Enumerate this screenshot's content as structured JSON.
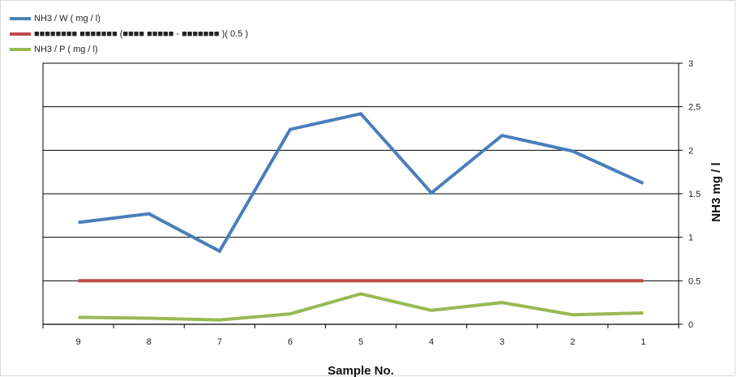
{
  "chart_data": {
    "type": "line",
    "categories": [
      "9",
      "8",
      "7",
      "6",
      "5",
      "4",
      "3",
      "2",
      "1"
    ],
    "series": [
      {
        "name": "NH3 / W ( mg / l)",
        "color": "#4a7ebb",
        "values": [
          1.17,
          1.27,
          0.84,
          2.24,
          2.42,
          1.51,
          2.17,
          1.99,
          1.62
        ]
      },
      {
        "name": "■■■■■■■■ ■■■■■■■  (■■■■ ■■■■■ - ■■■■■■■ )( 0.5 )",
        "color": "#be4b48",
        "values": [
          0.5,
          0.5,
          0.5,
          0.5,
          0.5,
          0.5,
          0.5,
          0.5,
          0.5
        ]
      },
      {
        "name": "NH3 / P ( mg / l)",
        "color": "#98b954",
        "values": [
          0.08,
          0.07,
          0.05,
          0.12,
          0.35,
          0.16,
          0.25,
          0.11,
          0.13
        ]
      }
    ],
    "xlabel": "Sample No.",
    "ylabel": "NH3 mg / l",
    "ylim": [
      0,
      3
    ],
    "yticks": [
      "0",
      "0.5",
      "1",
      "1.5",
      "2",
      "2.5",
      "3"
    ],
    "y_axis_side": "right",
    "grid": true,
    "legend_position": "top-left"
  }
}
